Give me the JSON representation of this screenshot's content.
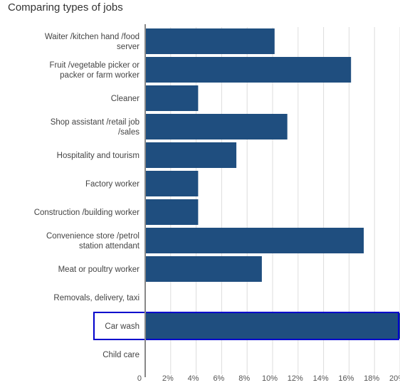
{
  "header": {
    "title": "Comparing types of jobs"
  },
  "colors": {
    "bar": "#1f4e7f",
    "highlight_border": "#0000cc",
    "grid": "#dddddd",
    "axis": "#888888"
  },
  "chart_data": {
    "type": "bar",
    "orientation": "horizontal",
    "title": "Comparing types of jobs",
    "xlabel": "",
    "ylabel": "",
    "categories": [
      "Waiter /kitchen hand /food server",
      "Fruit /vegetable picker or packer or farm worker",
      "Cleaner",
      "Shop assistant /retail job /sales",
      "Hospitality and tourism",
      "Factory worker",
      "Construction /building worker",
      "Convenience store /petrol station attendant",
      "Meat or poultry worker",
      "Removals, delivery, taxi",
      "Car wash",
      "Child care"
    ],
    "values": [
      10.1,
      16.1,
      4.1,
      11.1,
      7.1,
      4.1,
      4.1,
      17.1,
      9.1,
      0,
      20.2,
      0
    ],
    "highlighted_category": "Car wash",
    "xlim": [
      0,
      20
    ],
    "xticks": [
      0,
      2,
      4,
      6,
      8,
      10,
      12,
      14,
      16,
      18,
      20
    ],
    "xtick_labels": [
      "0",
      "2%",
      "4%",
      "6%",
      "8%",
      "10%",
      "12%",
      "14%",
      "16%",
      "18%",
      "20%"
    ],
    "grid": true,
    "legend": "none"
  }
}
